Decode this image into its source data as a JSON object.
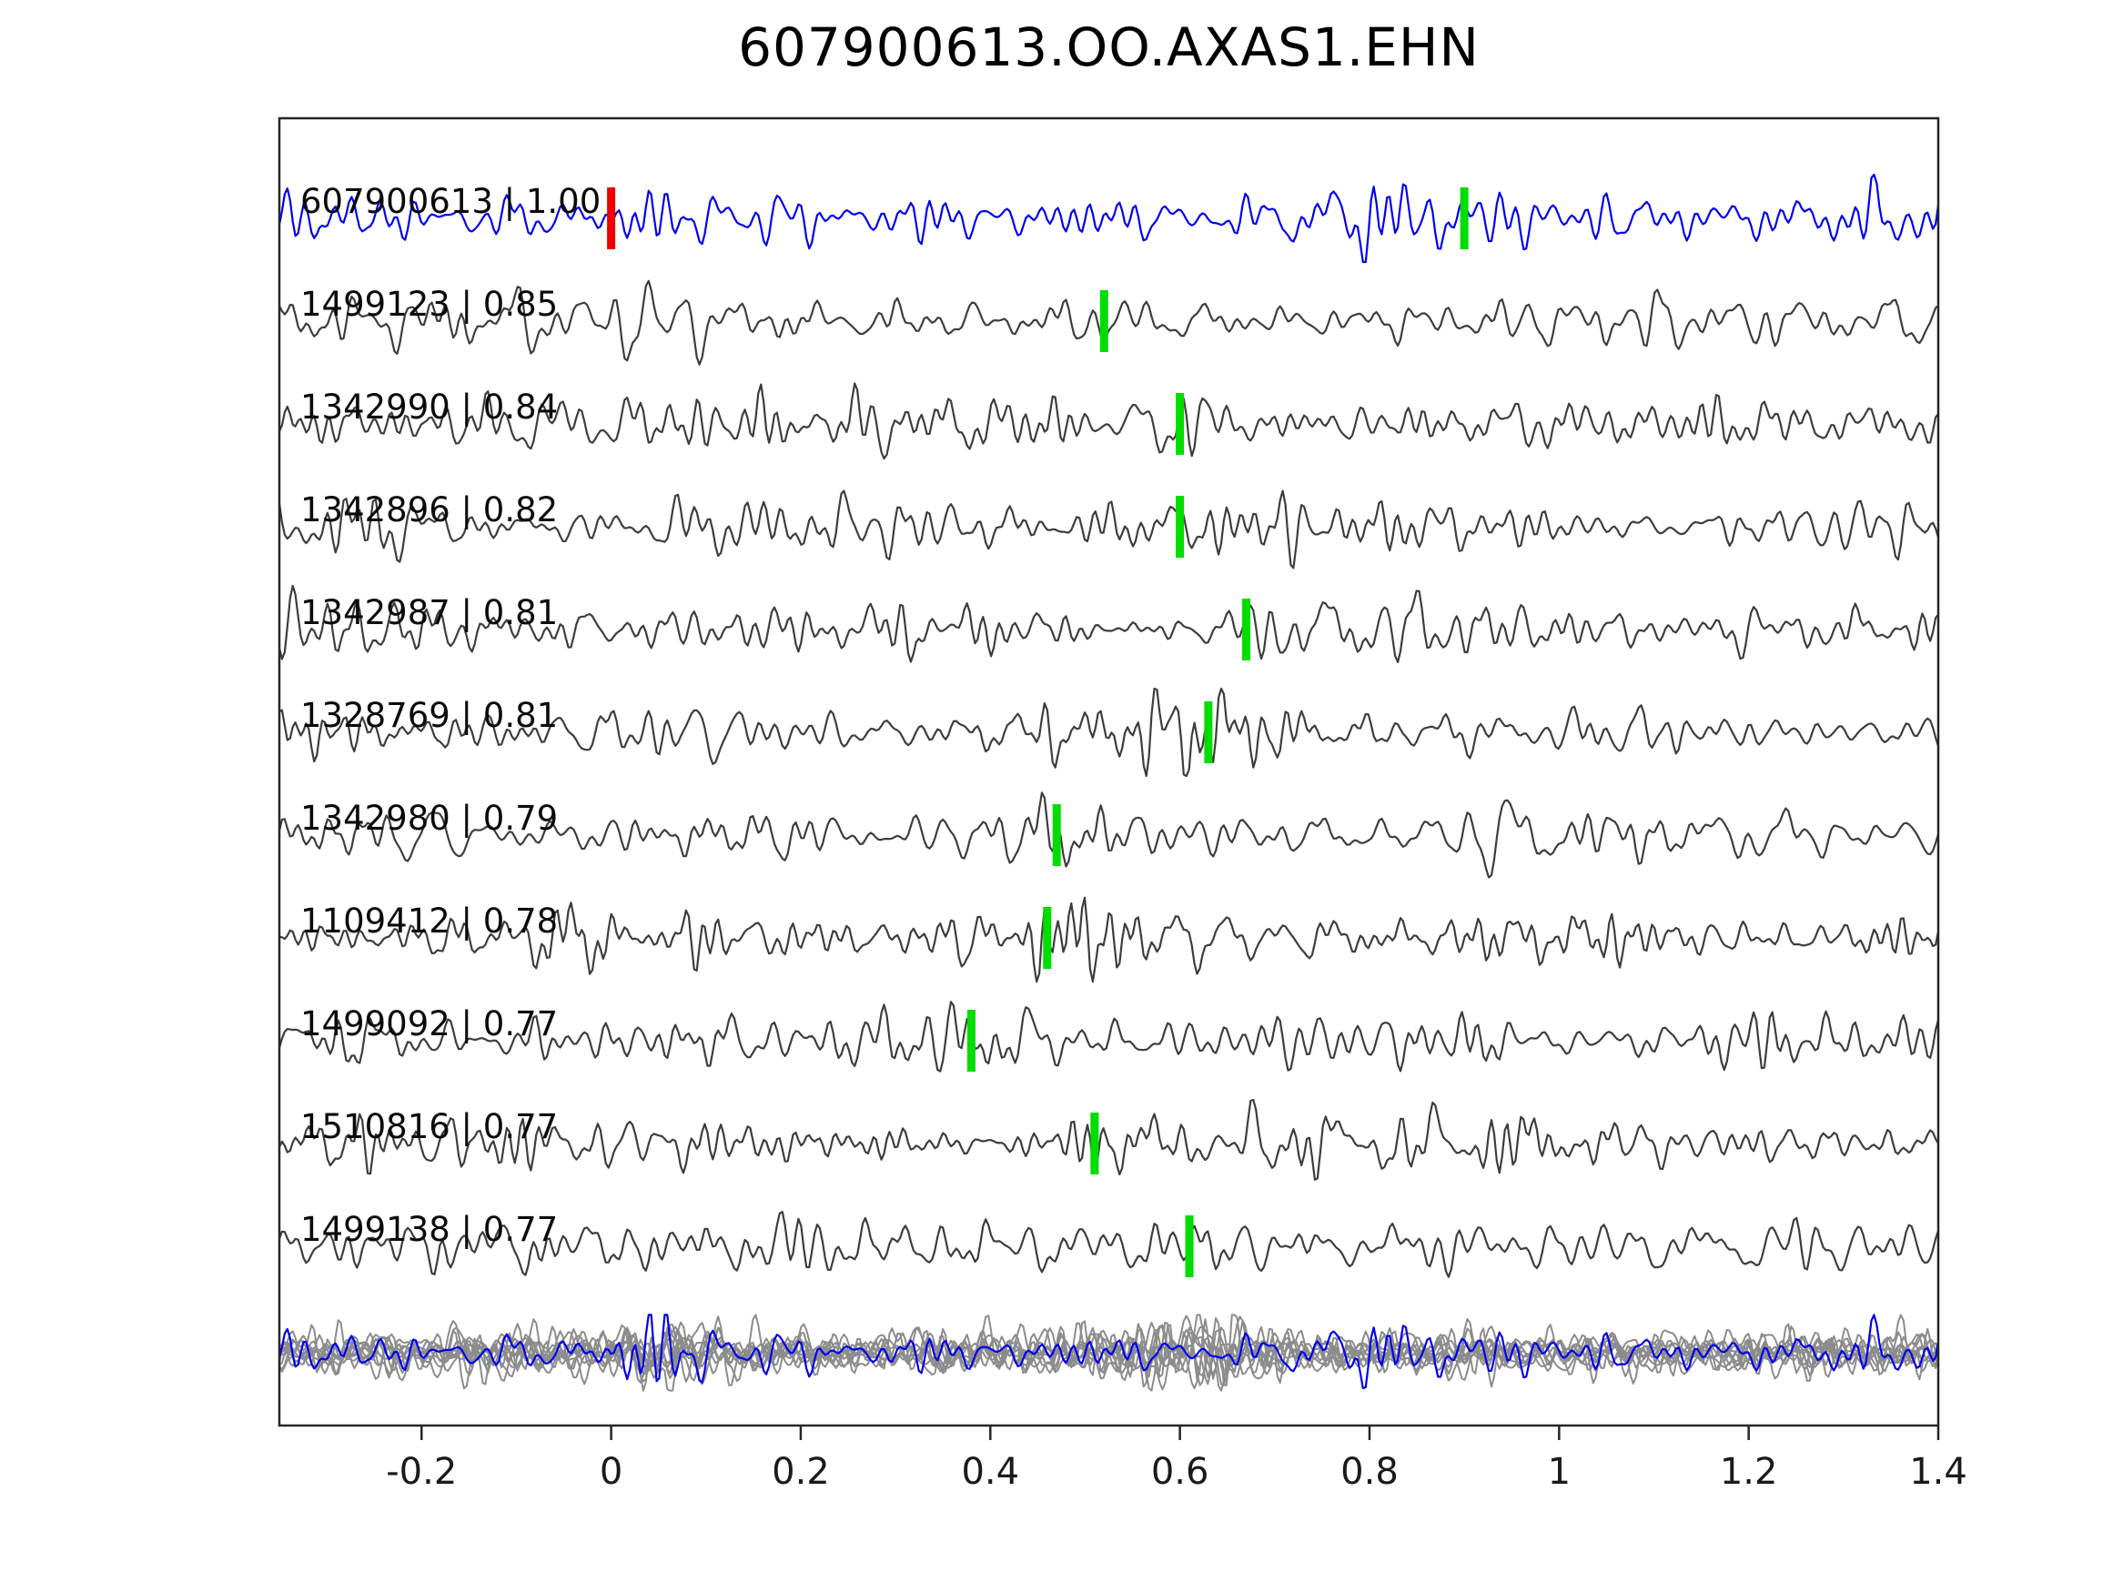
{
  "title": "607900613.OO.AXAS1.EHN",
  "chart_data": {
    "type": "line",
    "title": "607900613.OO.AXAS1.EHN",
    "xlim": [
      -0.35,
      1.4
    ],
    "grid": false,
    "x_ticks": [
      {
        "value": -0.2,
        "label": "-0.2"
      },
      {
        "value": 0,
        "label": "0"
      },
      {
        "value": 0.2,
        "label": "0.2"
      },
      {
        "value": 0.4,
        "label": "0.4"
      },
      {
        "value": 0.6,
        "label": "0.6"
      },
      {
        "value": 0.8,
        "label": "0.8"
      },
      {
        "value": 1,
        "label": "1"
      },
      {
        "value": 1.2,
        "label": "1.2"
      },
      {
        "value": 1.4,
        "label": "1.4"
      }
    ],
    "colors": {
      "reference_trace": "#0000ee",
      "match_trace": "#3d3d3d",
      "overlay_trace": "#8c8c8c",
      "pick_marker": "#00dd00",
      "reference_marker": "#ee0000",
      "axis": "#262626"
    },
    "traces": [
      {
        "label": "607900613 | 1.00",
        "event_id": "607900613",
        "similarity": 1.0,
        "style": "reference",
        "markers": [
          {
            "x": 0.0,
            "type": "reference"
          },
          {
            "x": 0.9,
            "type": "pick"
          }
        ]
      },
      {
        "label": "1499123 | 0.85",
        "event_id": "1499123",
        "similarity": 0.85,
        "style": "match",
        "markers": [
          {
            "x": 0.52,
            "type": "pick"
          }
        ]
      },
      {
        "label": "1342990 | 0.84",
        "event_id": "1342990",
        "similarity": 0.84,
        "style": "match",
        "markers": [
          {
            "x": 0.6,
            "type": "pick"
          }
        ]
      },
      {
        "label": "1342896 | 0.82",
        "event_id": "1342896",
        "similarity": 0.82,
        "style": "match",
        "markers": [
          {
            "x": 0.6,
            "type": "pick"
          }
        ]
      },
      {
        "label": "1342987 | 0.81",
        "event_id": "1342987",
        "similarity": 0.81,
        "style": "match",
        "markers": [
          {
            "x": 0.67,
            "type": "pick"
          }
        ]
      },
      {
        "label": "1328769 | 0.81",
        "event_id": "1328769",
        "similarity": 0.81,
        "style": "match",
        "markers": [
          {
            "x": 0.63,
            "type": "pick"
          }
        ]
      },
      {
        "label": "1342980 | 0.79",
        "event_id": "1342980",
        "similarity": 0.79,
        "style": "match",
        "markers": [
          {
            "x": 0.47,
            "type": "pick"
          }
        ]
      },
      {
        "label": "1109412 | 0.78",
        "event_id": "1109412",
        "similarity": 0.78,
        "style": "match",
        "markers": [
          {
            "x": 0.46,
            "type": "pick"
          }
        ]
      },
      {
        "label": "1499092 | 0.77",
        "event_id": "1499092",
        "similarity": 0.77,
        "style": "match",
        "markers": [
          {
            "x": 0.38,
            "type": "pick"
          }
        ]
      },
      {
        "label": "1510816 | 0.77",
        "event_id": "1510816",
        "similarity": 0.77,
        "style": "match",
        "markers": [
          {
            "x": 0.51,
            "type": "pick"
          }
        ]
      },
      {
        "label": "1499138 | 0.77",
        "event_id": "1499138",
        "similarity": 0.77,
        "style": "match",
        "markers": [
          {
            "x": 0.61,
            "type": "pick"
          }
        ]
      }
    ],
    "overlay_row": {
      "gray_count": 10,
      "has_reference": true
    }
  }
}
